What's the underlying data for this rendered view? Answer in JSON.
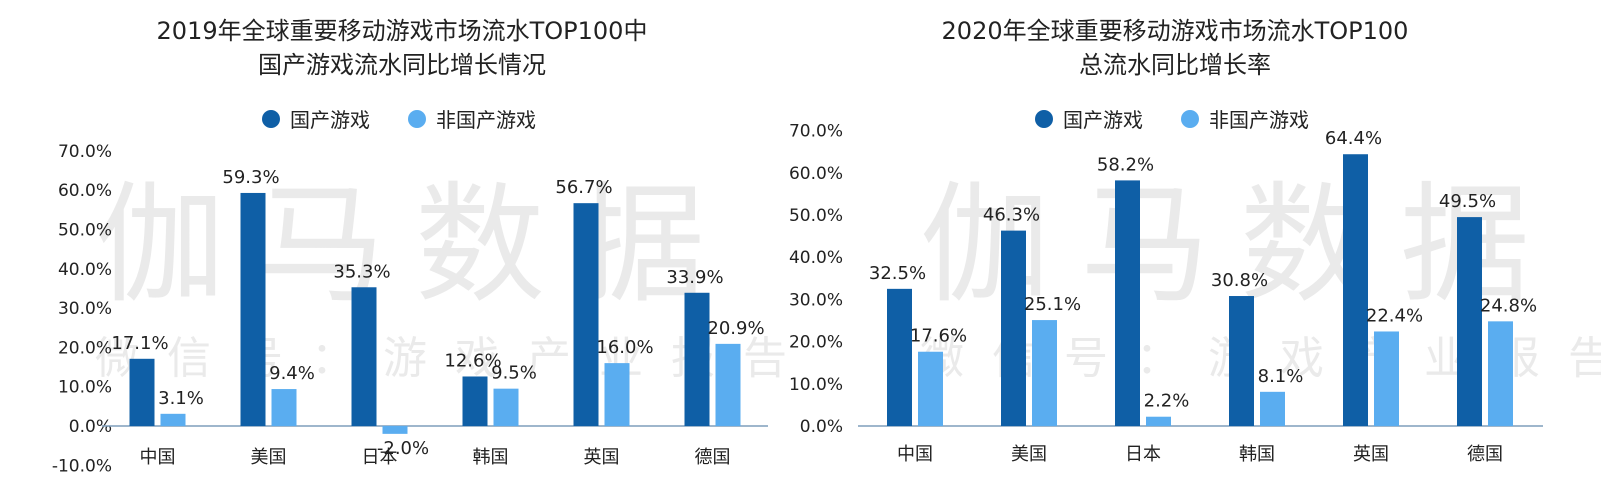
{
  "watermark": {
    "big": "伽马数据",
    "small": "微信号：游戏产业报告"
  },
  "colors": {
    "domestic": "#0f5fa6",
    "foreign": "#5aadf0",
    "axis": "#7f9ebb",
    "text": "#222222"
  },
  "charts": [
    {
      "title_line1": "2019年全球重要移动游戏市场流水TOP100中",
      "title_line2": "国产游戏流水同比增长情况",
      "legend": [
        "国产游戏",
        "非国产游戏"
      ]
    },
    {
      "title_line1": "2020年全球重要移动游戏市场流水TOP100",
      "title_line2": "总流水同比增长率",
      "legend": [
        "国产游戏",
        "非国产游戏"
      ]
    }
  ],
  "chart_data": [
    {
      "type": "bar",
      "title": "2019年全球重要移动游戏市场流水TOP100中国产游戏流水同比增长情况",
      "categories": [
        "中国",
        "美国",
        "日本",
        "韩国",
        "英国",
        "德国"
      ],
      "series": [
        {
          "name": "国产游戏",
          "values": [
            17.1,
            59.3,
            35.3,
            12.6,
            56.7,
            33.9
          ]
        },
        {
          "name": "非国产游戏",
          "values": [
            3.1,
            9.4,
            -2.0,
            9.5,
            16.0,
            20.9
          ]
        }
      ],
      "value_labels": [
        [
          "17.1%",
          "59.3%",
          "35.3%",
          "12.6%",
          "56.7%",
          "33.9%"
        ],
        [
          "3.1%",
          "9.4%",
          "-2.0%",
          "9.5%",
          "16.0%",
          "20.9%"
        ]
      ],
      "ylim": [
        -10,
        70
      ],
      "yticks": [
        "-10.0%",
        "0.0%",
        "10.0%",
        "20.0%",
        "30.0%",
        "40.0%",
        "50.0%",
        "60.0%",
        "70.0%"
      ],
      "legend_position": "top-center",
      "grid": false
    },
    {
      "type": "bar",
      "title": "2020年全球重要移动游戏市场流水TOP100总流水同比增长率",
      "categories": [
        "中国",
        "美国",
        "日本",
        "韩国",
        "英国",
        "德国"
      ],
      "series": [
        {
          "name": "国产游戏",
          "values": [
            32.5,
            46.3,
            58.2,
            30.8,
            64.4,
            49.5
          ]
        },
        {
          "name": "非国产游戏",
          "values": [
            17.6,
            25.1,
            2.2,
            8.1,
            22.4,
            24.8
          ]
        }
      ],
      "value_labels": [
        [
          "32.5%",
          "46.3%",
          "58.2%",
          "30.8%",
          "64.4%",
          "49.5%"
        ],
        [
          "17.6%",
          "25.1%",
          "2.2%",
          "8.1%",
          "22.4%",
          "24.8%"
        ]
      ],
      "ylim": [
        0,
        70
      ],
      "yticks": [
        "0.0%",
        "10.0%",
        "20.0%",
        "30.0%",
        "40.0%",
        "50.0%",
        "60.0%",
        "70.0%"
      ],
      "legend_position": "top-center",
      "grid": false
    }
  ]
}
